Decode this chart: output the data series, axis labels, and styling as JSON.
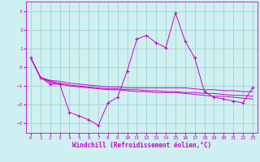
{
  "title": "",
  "xlabel": "Windchill (Refroidissement éolien,°C)",
  "ylabel": "",
  "background_color": "#cff0f0",
  "grid_color": "#99cccc",
  "line_color": "#cc00cc",
  "x": [
    0,
    1,
    2,
    3,
    4,
    5,
    6,
    7,
    8,
    9,
    10,
    11,
    12,
    13,
    14,
    15,
    16,
    17,
    18,
    19,
    20,
    21,
    22,
    23
  ],
  "y_main": [
    0.5,
    -0.55,
    -0.9,
    -0.9,
    -2.4,
    -2.6,
    -2.8,
    -3.1,
    -1.9,
    -1.6,
    -0.2,
    1.5,
    1.7,
    1.3,
    1.05,
    2.9,
    1.4,
    0.5,
    -1.3,
    -1.6,
    -1.7,
    -1.8,
    -1.9,
    -1.1
  ],
  "y_line2": [
    0.5,
    -0.55,
    -0.7,
    -0.75,
    -0.85,
    -0.9,
    -0.95,
    -1.0,
    -1.05,
    -1.05,
    -1.1,
    -1.1,
    -1.1,
    -1.1,
    -1.1,
    -1.1,
    -1.1,
    -1.15,
    -1.2,
    -1.2,
    -1.25,
    -1.25,
    -1.3,
    -1.3
  ],
  "y_line3": [
    0.5,
    -0.55,
    -0.75,
    -0.85,
    -0.95,
    -1.0,
    -1.05,
    -1.1,
    -1.15,
    -1.15,
    -1.2,
    -1.2,
    -1.25,
    -1.25,
    -1.3,
    -1.3,
    -1.35,
    -1.35,
    -1.4,
    -1.4,
    -1.45,
    -1.5,
    -1.5,
    -1.55
  ],
  "y_line4": [
    0.5,
    -0.55,
    -0.8,
    -0.9,
    -1.0,
    -1.05,
    -1.1,
    -1.15,
    -1.2,
    -1.2,
    -1.25,
    -1.3,
    -1.3,
    -1.35,
    -1.35,
    -1.35,
    -1.4,
    -1.45,
    -1.5,
    -1.55,
    -1.55,
    -1.6,
    -1.65,
    -1.7
  ],
  "ylim": [
    -3.5,
    3.5
  ],
  "xlim": [
    -0.5,
    23.5
  ],
  "yticks": [
    -3,
    -2,
    -1,
    0,
    1,
    2,
    3
  ],
  "xticks": [
    0,
    1,
    2,
    3,
    4,
    5,
    6,
    7,
    8,
    9,
    10,
    11,
    12,
    13,
    14,
    15,
    16,
    17,
    18,
    19,
    20,
    21,
    22,
    23
  ],
  "tick_fontsize": 4.5,
  "xlabel_fontsize": 5.5,
  "marker": "+",
  "marker_size": 3,
  "linewidth": 0.7
}
